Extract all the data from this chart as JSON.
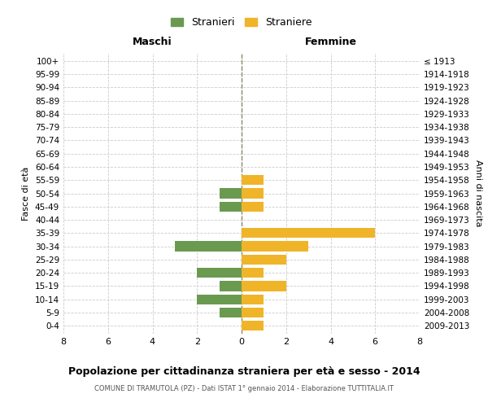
{
  "age_groups": [
    "100+",
    "95-99",
    "90-94",
    "85-89",
    "80-84",
    "75-79",
    "70-74",
    "65-69",
    "60-64",
    "55-59",
    "50-54",
    "45-49",
    "40-44",
    "35-39",
    "30-34",
    "25-29",
    "20-24",
    "15-19",
    "10-14",
    "5-9",
    "0-4"
  ],
  "birth_years": [
    "≤ 1913",
    "1914-1918",
    "1919-1923",
    "1924-1928",
    "1929-1933",
    "1934-1938",
    "1939-1943",
    "1944-1948",
    "1949-1953",
    "1954-1958",
    "1959-1963",
    "1964-1968",
    "1969-1973",
    "1974-1978",
    "1979-1983",
    "1984-1988",
    "1989-1993",
    "1994-1998",
    "1999-2003",
    "2004-2008",
    "2009-2013"
  ],
  "maschi": [
    0,
    0,
    0,
    0,
    0,
    0,
    0,
    0,
    0,
    0,
    1,
    1,
    0,
    0,
    3,
    0,
    2,
    1,
    2,
    1,
    0
  ],
  "femmine": [
    0,
    0,
    0,
    0,
    0,
    0,
    0,
    0,
    0,
    1,
    1,
    1,
    0,
    6,
    3,
    2,
    1,
    2,
    1,
    1,
    1
  ],
  "maschi_color": "#6a9a50",
  "femmine_color": "#f0b429",
  "title": "Popolazione per cittadinanza straniera per età e sesso - 2014",
  "subtitle": "COMUNE DI TRAMUTOLA (PZ) - Dati ISTAT 1° gennaio 2014 - Elaborazione TUTTITALIA.IT",
  "xlabel_left": "Maschi",
  "xlabel_right": "Femmine",
  "ylabel_left": "Fasce di età",
  "ylabel_right": "Anni di nascita",
  "legend_stranieri": "Stranieri",
  "legend_straniere": "Straniere",
  "xlim": 8,
  "background_color": "#ffffff",
  "grid_color": "#cccccc",
  "bar_height": 0.75
}
